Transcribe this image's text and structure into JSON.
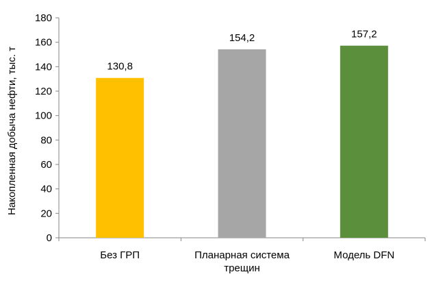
{
  "chart_data": {
    "type": "bar",
    "title": "",
    "xlabel": "",
    "ylabel": "Накопленная добыча нефти, тыс. т",
    "ylim": [
      0,
      180
    ],
    "yticks": [
      "0",
      "20",
      "40",
      "60",
      "80",
      "100",
      "120",
      "140",
      "160",
      "180"
    ],
    "ytick_values": [
      0,
      20,
      40,
      60,
      80,
      100,
      120,
      140,
      160,
      180
    ],
    "grid": false,
    "legend": "none",
    "categories": [
      {
        "lines": [
          "Без ГРП"
        ]
      },
      {
        "lines": [
          "Планарная  система",
          "трещин"
        ]
      },
      {
        "lines": [
          "Модель  DFN"
        ]
      }
    ],
    "values": [
      130.8,
      154.2,
      157.2
    ],
    "data_labels": [
      "130,8",
      "154,2",
      "157,2"
    ],
    "colors": [
      "#ffc000",
      "#a6a6a6",
      "#5b8f3c"
    ]
  }
}
